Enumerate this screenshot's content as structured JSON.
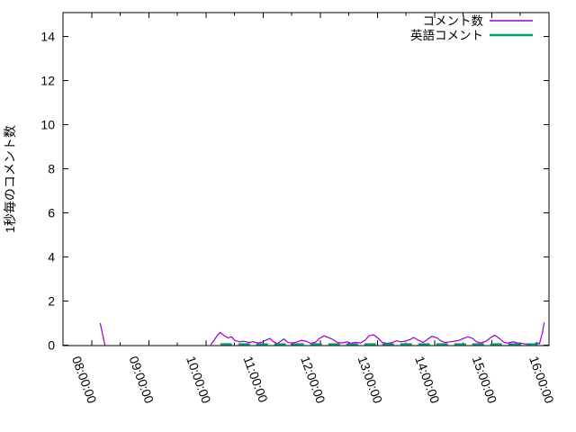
{
  "chart_data": {
    "type": "line",
    "title": "",
    "xlabel": "",
    "ylabel": "1秒毎のコメント数",
    "x_range": [
      "07:30:00",
      "16:00:00"
    ],
    "ylim": [
      0,
      15
    ],
    "grid": false,
    "legend_position": "top-right-inside",
    "y_ticks": [
      0,
      2,
      4,
      6,
      8,
      10,
      12,
      14
    ],
    "y_tick_labels": [
      "0",
      "2",
      "4",
      "6",
      "8",
      "10",
      "12",
      "14"
    ],
    "x_tick_labels": [
      "08:00:00",
      "09:00:00",
      "10:00:00",
      "11:00:00",
      "12:00:00",
      "13:00:00",
      "14:00:00",
      "15:00:00",
      "16:00:00"
    ],
    "x_minor_ticks": [
      "08:30",
      "09:30",
      "10:30",
      "11:30",
      "12:30",
      "13:30",
      "14:30",
      "15:30"
    ],
    "series": [
      {
        "name": "コメント数",
        "color": "#9400D3",
        "style": "solid",
        "width": 1.2,
        "points": [
          [
            "08:09",
            1.0
          ],
          [
            "08:14",
            0.0
          ],
          null,
          [
            "10:05",
            0.02
          ],
          [
            "10:09",
            0.25
          ],
          [
            "10:12",
            0.45
          ],
          [
            "10:15",
            0.58
          ],
          [
            "10:19",
            0.44
          ],
          [
            "10:23",
            0.33
          ],
          [
            "10:27",
            0.38
          ],
          [
            "10:30",
            0.22
          ],
          [
            "10:35",
            0.15
          ],
          [
            "10:40",
            0.18
          ],
          [
            "10:45",
            0.12
          ],
          [
            "10:49",
            0.16
          ],
          [
            "10:54",
            0.1
          ],
          [
            "10:59",
            0.14
          ],
          [
            "11:04",
            0.25
          ],
          [
            "11:07",
            0.3
          ],
          [
            "11:11",
            0.15
          ],
          [
            "11:15",
            0.07
          ],
          [
            "11:19",
            0.2
          ],
          [
            "11:22",
            0.28
          ],
          [
            "11:26",
            0.12
          ],
          [
            "11:31",
            0.1
          ],
          [
            "11:36",
            0.15
          ],
          [
            "11:40",
            0.22
          ],
          [
            "11:45",
            0.18
          ],
          [
            "11:50",
            0.08
          ],
          [
            "11:55",
            0.13
          ],
          [
            "11:59",
            0.3
          ],
          [
            "12:04",
            0.42
          ],
          [
            "12:09",
            0.34
          ],
          [
            "12:14",
            0.24
          ],
          [
            "12:18",
            0.12
          ],
          [
            "12:23",
            0.1
          ],
          [
            "12:28",
            0.15
          ],
          [
            "12:32",
            0.09
          ],
          [
            "12:37",
            0.13
          ],
          [
            "12:42",
            0.1
          ],
          [
            "12:47",
            0.22
          ],
          [
            "12:51",
            0.42
          ],
          [
            "12:56",
            0.47
          ],
          [
            "13:01",
            0.3
          ],
          [
            "13:05",
            0.12
          ],
          [
            "13:10",
            0.08
          ],
          [
            "13:15",
            0.11
          ],
          [
            "13:20",
            0.2
          ],
          [
            "13:24",
            0.15
          ],
          [
            "13:29",
            0.18
          ],
          [
            "13:34",
            0.25
          ],
          [
            "13:38",
            0.35
          ],
          [
            "13:43",
            0.22
          ],
          [
            "13:48",
            0.12
          ],
          [
            "13:53",
            0.28
          ],
          [
            "13:57",
            0.4
          ],
          [
            "14:02",
            0.34
          ],
          [
            "14:07",
            0.18
          ],
          [
            "14:11",
            0.12
          ],
          [
            "14:16",
            0.15
          ],
          [
            "14:21",
            0.18
          ],
          [
            "14:26",
            0.22
          ],
          [
            "14:30",
            0.3
          ],
          [
            "14:35",
            0.38
          ],
          [
            "14:40",
            0.3
          ],
          [
            "14:44",
            0.15
          ],
          [
            "14:49",
            0.1
          ],
          [
            "14:54",
            0.18
          ],
          [
            "14:59",
            0.35
          ],
          [
            "15:03",
            0.45
          ],
          [
            "15:08",
            0.3
          ],
          [
            "15:13",
            0.12
          ],
          [
            "15:17",
            0.1
          ],
          [
            "15:22",
            0.15
          ],
          [
            "15:27",
            0.1
          ],
          [
            "15:31",
            0.08
          ],
          [
            "15:36",
            0.05
          ],
          [
            "15:41",
            0.02
          ],
          [
            "15:44",
            0.0
          ],
          [
            "15:47",
            0.12
          ],
          [
            "15:50",
            0.06
          ],
          [
            "15:53",
            0.55
          ],
          [
            "15:55",
            1.02
          ]
        ]
      },
      {
        "name": "英語コメント",
        "color": "#009E73",
        "style": "dashed",
        "width": 2.2,
        "points": [
          [
            "10:15",
            0.04
          ],
          [
            "15:55",
            0.04
          ]
        ]
      }
    ]
  },
  "colors": {
    "background": "#ffffff",
    "axis": "#000000",
    "text": "#000000"
  }
}
